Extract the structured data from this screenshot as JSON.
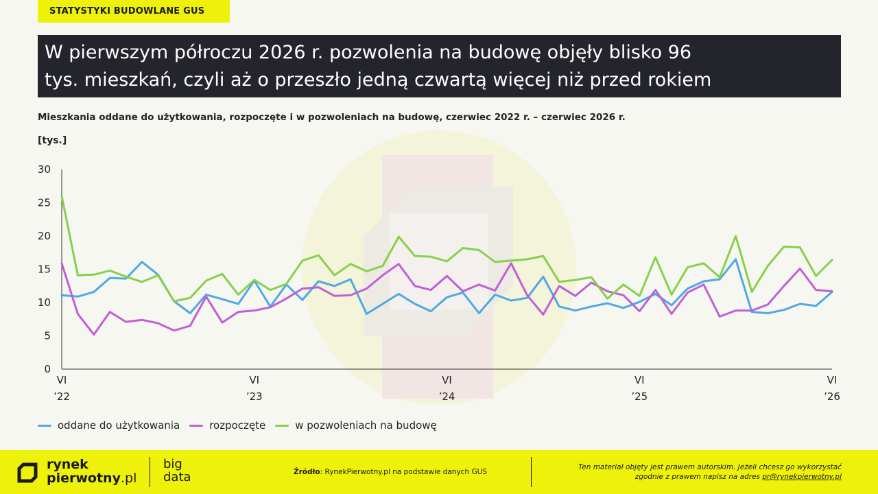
{
  "header": {
    "tag": "STATYSTYKI BUDOWLANE GUS",
    "headline_line1": "W pierwszym półroczu 2026 r. pozwolenia na budowę objęły blisko 96",
    "headline_line2": "tys. mieszkań, czyli aż o przeszło jedną czwartą więcej niż przed rokiem"
  },
  "footer": {
    "logo_line1": "rynek",
    "logo_line2_a": "pierwotny",
    "logo_line2_b": ".pl",
    "bigdata_line1": "big",
    "bigdata_line2": "data",
    "source_label": "Źródło",
    "source_text": ": RynekPierwotny.pl na podstawie danych GUS",
    "copyright_line1": "Ten materiał objęty jest prawem autorskim. Jeżeli chcesz go wykorzystać",
    "copyright_line2": "zgodnie z prawem napisz na adres ",
    "copyright_email": "pr@rynekpierwotny.pl"
  },
  "colors": {
    "accent_yellow": "#eef20a",
    "headline_bg": "#24252c",
    "series_completed": "#4ea8e6",
    "series_started": "#c05fd6",
    "series_permits": "#86d04a"
  },
  "chart_data": {
    "type": "line",
    "title": "Mieszkania oddane do użytkowania, rozpoczęte i w pozwoleniach na budowę, czerwiec 2022 r. – czerwiec 2026 r.",
    "ylabel": "[tys.]",
    "ylim": [
      0,
      30
    ],
    "yticks": [
      "0",
      "5",
      "10",
      "15",
      "20",
      "25",
      "30"
    ],
    "xticks": [
      {
        "index": 0,
        "month": "VI",
        "year": "’22"
      },
      {
        "index": 12,
        "month": "VI",
        "year": "’23"
      },
      {
        "index": 24,
        "month": "VI",
        "year": "’24"
      },
      {
        "index": 36,
        "month": "VI",
        "year": "’25"
      },
      {
        "index": 48,
        "month": "VI",
        "year": "’26"
      }
    ],
    "x_count": 49,
    "grid": false,
    "legend_position": "bottom-left",
    "series": [
      {
        "name": "oddane do użytkowania",
        "color": "#4ea8e6",
        "values": [
          11.1,
          10.9,
          11.6,
          13.7,
          13.6,
          16.1,
          14.2,
          10.2,
          8.4,
          11.2,
          10.5,
          9.8,
          13.3,
          9.4,
          12.7,
          10.4,
          13.2,
          12.5,
          13.5,
          8.3,
          9.8,
          11.3,
          9.8,
          8.7,
          10.8,
          11.5,
          8.4,
          11.2,
          10.3,
          10.7,
          13.9,
          9.4,
          8.8,
          9.4,
          9.9,
          9.2,
          10.1,
          11.3,
          9.6,
          12.1,
          13.2,
          13.5,
          16.5,
          8.6,
          8.4,
          8.9,
          9.8,
          9.5,
          11.6
        ]
      },
      {
        "name": "rozpoczęte",
        "color": "#c05fd6",
        "values": [
          15.9,
          8.3,
          5.2,
          8.6,
          7.1,
          7.4,
          6.9,
          5.8,
          6.5,
          10.9,
          7.0,
          8.6,
          8.8,
          9.3,
          10.6,
          12.1,
          12.3,
          11.0,
          11.1,
          12.1,
          14.1,
          15.8,
          12.5,
          11.9,
          14.0,
          11.7,
          12.7,
          11.8,
          15.9,
          11.1,
          8.2,
          12.5,
          11.0,
          13.0,
          11.7,
          11.1,
          8.7,
          11.9,
          8.3,
          11.5,
          12.7,
          7.9,
          8.8,
          8.8,
          9.7,
          12.5,
          15.1,
          11.9,
          11.7
        ]
      },
      {
        "name": "w pozwoleniach na budowę",
        "color": "#86d04a",
        "values": [
          26.0,
          14.1,
          14.2,
          14.8,
          13.9,
          13.1,
          14.1,
          10.2,
          10.7,
          13.3,
          14.3,
          11.2,
          13.4,
          11.9,
          12.8,
          16.3,
          17.1,
          14.1,
          15.8,
          14.7,
          15.5,
          19.9,
          17.0,
          16.9,
          16.2,
          18.2,
          17.9,
          16.1,
          16.3,
          16.5,
          17.0,
          13.1,
          13.4,
          13.8,
          10.6,
          12.7,
          11.0,
          16.8,
          11.2,
          15.3,
          15.9,
          13.8,
          20.0,
          11.6,
          15.5,
          18.4,
          18.3,
          14.0,
          16.4
        ]
      }
    ]
  }
}
